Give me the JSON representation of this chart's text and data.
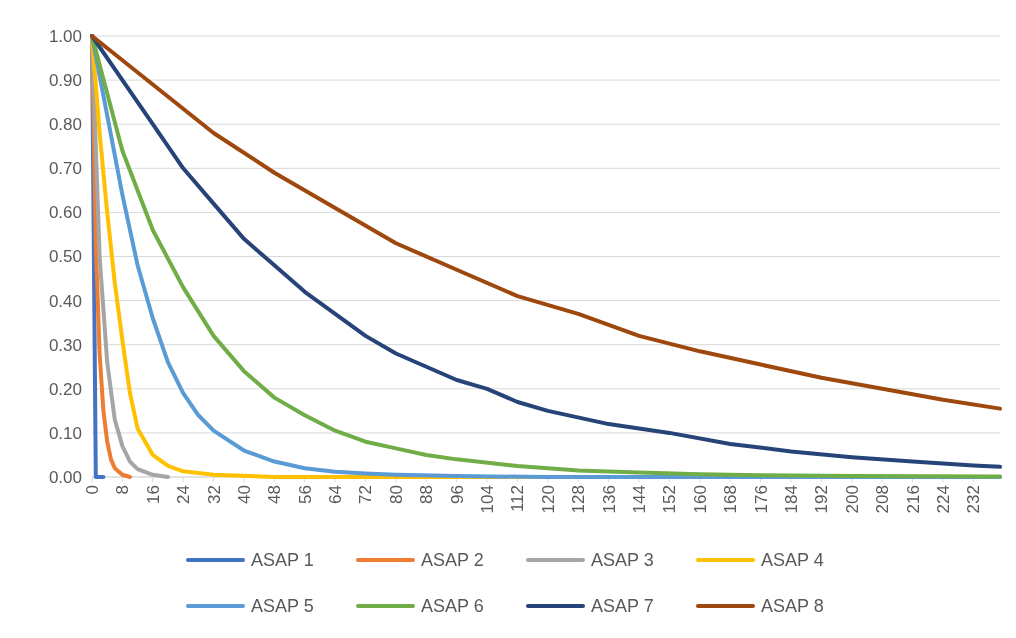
{
  "chart_data": {
    "type": "line",
    "xlim": [
      0,
      239
    ],
    "xticks": [
      0,
      8,
      16,
      24,
      32,
      40,
      48,
      56,
      64,
      72,
      80,
      88,
      96,
      104,
      112,
      120,
      128,
      136,
      144,
      152,
      160,
      168,
      176,
      184,
      192,
      200,
      208,
      216,
      224,
      232
    ],
    "ylim": [
      0,
      1
    ],
    "yticks": [
      {
        "value": 0,
        "label": "0.00"
      },
      {
        "value": 0.1,
        "label": "0.10"
      },
      {
        "value": 0.2,
        "label": "0.20"
      },
      {
        "value": 0.3,
        "label": "0.30"
      },
      {
        "value": 0.4,
        "label": "0.40"
      },
      {
        "value": 0.5,
        "label": "0.50"
      },
      {
        "value": 0.6,
        "label": "0.60"
      },
      {
        "value": 0.7,
        "label": "0.70"
      },
      {
        "value": 0.8,
        "label": "0.80"
      },
      {
        "value": 0.9,
        "label": "0.90"
      },
      {
        "value": 1,
        "label": "1.00"
      }
    ],
    "grid": "y",
    "legend": "bottom",
    "marker": "none",
    "line_style": "solid",
    "series": [
      {
        "name": "ASAP 1",
        "color": "#4472c4",
        "x": [
          0,
          1,
          3
        ],
        "values": [
          1,
          0,
          0
        ]
      },
      {
        "name": "ASAP 2",
        "color": "#ed7d31",
        "x": [
          0,
          1,
          2,
          3,
          4,
          5,
          6,
          8,
          10
        ],
        "values": [
          1,
          0.53,
          0.28,
          0.15,
          0.08,
          0.04,
          0.02,
          0.005,
          0
        ]
      },
      {
        "name": "ASAP 3",
        "color": "#a5a5a5",
        "x": [
          0,
          2,
          4,
          6,
          8,
          10,
          12,
          16,
          20
        ],
        "values": [
          1,
          0.5,
          0.26,
          0.13,
          0.07,
          0.035,
          0.018,
          0.005,
          0
        ]
      },
      {
        "name": "ASAP 4",
        "color": "#ffc000",
        "x": [
          0,
          2,
          4,
          6,
          8,
          10,
          12,
          16,
          20,
          24,
          32,
          48,
          239
        ],
        "values": [
          1,
          0.78,
          0.6,
          0.44,
          0.31,
          0.19,
          0.11,
          0.05,
          0.025,
          0.013,
          0.005,
          0,
          0
        ]
      },
      {
        "name": "ASAP 5",
        "color": "#5b9bd5",
        "x": [
          0,
          4,
          8,
          12,
          16,
          20,
          24,
          28,
          32,
          40,
          48,
          56,
          64,
          72,
          80,
          96,
          120,
          239
        ],
        "values": [
          1,
          0.82,
          0.64,
          0.48,
          0.36,
          0.26,
          0.19,
          0.14,
          0.105,
          0.06,
          0.035,
          0.02,
          0.012,
          0.008,
          0.005,
          0.002,
          0,
          0
        ]
      },
      {
        "name": "ASAP 6",
        "color": "#70ad47",
        "x": [
          0,
          8,
          16,
          24,
          32,
          40,
          48,
          56,
          64,
          72,
          80,
          88,
          96,
          112,
          128,
          144,
          160,
          176,
          200,
          239
        ],
        "values": [
          1,
          0.74,
          0.56,
          0.43,
          0.32,
          0.24,
          0.18,
          0.14,
          0.105,
          0.08,
          0.065,
          0.05,
          0.04,
          0.025,
          0.015,
          0.01,
          0.006,
          0.004,
          0.002,
          0.001
        ]
      },
      {
        "name": "ASAP 7",
        "color": "#264478",
        "x": [
          0,
          8,
          16,
          24,
          32,
          40,
          48,
          56,
          64,
          72,
          80,
          88,
          96,
          104,
          112,
          120,
          136,
          152,
          168,
          184,
          200,
          216,
          232,
          239
        ],
        "values": [
          1,
          0.9,
          0.8,
          0.7,
          0.62,
          0.54,
          0.48,
          0.42,
          0.37,
          0.32,
          0.28,
          0.25,
          0.22,
          0.2,
          0.17,
          0.15,
          0.12,
          0.1,
          0.075,
          0.058,
          0.045,
          0.035,
          0.026,
          0.023
        ]
      },
      {
        "name": "ASAP 8",
        "color": "#9e480e",
        "x": [
          0,
          16,
          32,
          48,
          64,
          80,
          96,
          112,
          128,
          144,
          160,
          176,
          192,
          208,
          224,
          239
        ],
        "values": [
          1,
          0.89,
          0.78,
          0.69,
          0.61,
          0.53,
          0.47,
          0.41,
          0.37,
          0.32,
          0.285,
          0.255,
          0.225,
          0.2,
          0.175,
          0.155
        ]
      }
    ]
  }
}
